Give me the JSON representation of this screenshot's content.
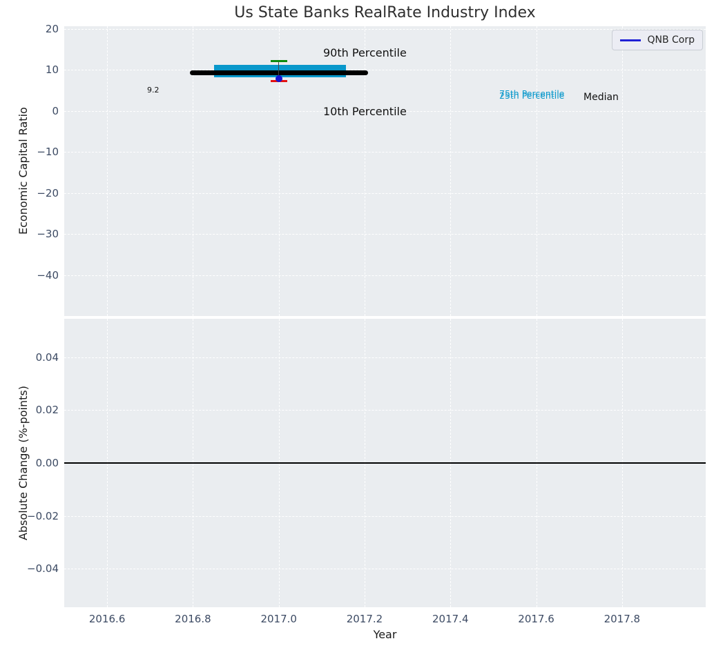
{
  "title": "Us State Banks RealRate Industry Index",
  "legend": {
    "label": "QNB Corp",
    "line_color": "#2121d6"
  },
  "colors": {
    "plot_bg": "#eaedf0",
    "grid": "#ffffff",
    "tick_label": "#3c4a63",
    "box_fill": "#0998cb",
    "median_line": "#000000",
    "whisker_top_cap": "#0e8b0e",
    "whisker_bottom_cap": "#e31010",
    "company_point": "#1414d2",
    "zero_line": "#000000"
  },
  "annotations": {
    "p90_label": "90th Percentile",
    "p10_label": "10th Percentile",
    "p75_label": "75th Percentile",
    "p25_label": "25th Percentile",
    "median_label": "Median",
    "median_value_label": "9.2"
  },
  "chart_data": [
    {
      "type": "boxplot",
      "panel": "top",
      "title": "Us State Banks RealRate Industry Index",
      "ylabel": "Economic Capital Ratio",
      "xlabel": "Year",
      "grid": true,
      "legend_position": "upper right",
      "xlim": [
        2016.5,
        2017.995
      ],
      "ylim": [
        -49.9,
        20.6
      ],
      "xticks": [
        {
          "v": 2016.6,
          "label": "2016.6"
        },
        {
          "v": 2016.8,
          "label": "2016.8"
        },
        {
          "v": 2017.0,
          "label": "2017.0"
        },
        {
          "v": 2017.2,
          "label": "2017.2"
        },
        {
          "v": 2017.4,
          "label": "2017.4"
        },
        {
          "v": 2017.6,
          "label": "2017.6"
        },
        {
          "v": 2017.8,
          "label": "2017.8"
        }
      ],
      "yticks": [
        {
          "v": 20,
          "label": "20"
        },
        {
          "v": 10,
          "label": "10"
        },
        {
          "v": 0,
          "label": "0"
        },
        {
          "v": -10,
          "label": "−10"
        },
        {
          "v": -20,
          "label": "−20"
        },
        {
          "v": -30,
          "label": "−30"
        },
        {
          "v": -40,
          "label": "−40"
        }
      ],
      "box": {
        "year": 2017.0,
        "p90": 12.1,
        "p75": 11.2,
        "median": 9.2,
        "p25": 8.2,
        "p10": 7.2,
        "median_value_label": "9.2",
        "median_line_span_years": [
          2016.793,
          2017.208
        ],
        "box_span_years": [
          2016.85,
          2017.157
        ],
        "cap_halfwidth_years": 0.019
      },
      "series": [
        {
          "name": "QNB Corp",
          "points": [
            {
              "x": 2017.0,
              "y": 7.8
            }
          ]
        }
      ]
    },
    {
      "type": "line",
      "panel": "bottom",
      "ylabel": "Absolute Change (%-points)",
      "xlabel": "Year",
      "grid": true,
      "xlim": [
        2016.5,
        2017.995
      ],
      "ylim": [
        -0.0545,
        0.0545
      ],
      "xticks": [
        {
          "v": 2016.6,
          "label": "2016.6"
        },
        {
          "v": 2016.8,
          "label": "2016.8"
        },
        {
          "v": 2017.0,
          "label": "2017.0"
        },
        {
          "v": 2017.2,
          "label": "2017.2"
        },
        {
          "v": 2017.4,
          "label": "2017.4"
        },
        {
          "v": 2017.6,
          "label": "2017.6"
        },
        {
          "v": 2017.8,
          "label": "2017.8"
        }
      ],
      "yticks": [
        {
          "v": 0.04,
          "label": "0.04"
        },
        {
          "v": 0.02,
          "label": "0.02"
        },
        {
          "v": 0.0,
          "label": "0.00"
        },
        {
          "v": -0.02,
          "label": "−0.02"
        },
        {
          "v": -0.04,
          "label": "−0.04"
        }
      ],
      "zero_line_y": 0.0,
      "series": []
    }
  ]
}
